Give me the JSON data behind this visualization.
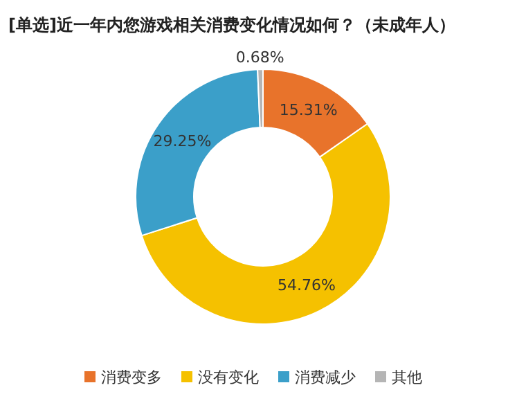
{
  "chart_data": {
    "type": "donut",
    "title": "[单选]近一年内您游戏相关消费变化情况如何？（未成年人）",
    "categories": [
      "消费变多",
      "没有变化",
      "消费减少",
      "其他"
    ],
    "values": [
      15.31,
      54.76,
      29.25,
      0.68
    ],
    "value_labels": [
      "15.31%",
      "54.76%",
      "29.25%",
      "0.68%"
    ],
    "colors": [
      "#e8732b",
      "#f5c100",
      "#3b9fc9",
      "#b5b5b5"
    ],
    "legend": "bottom"
  }
}
